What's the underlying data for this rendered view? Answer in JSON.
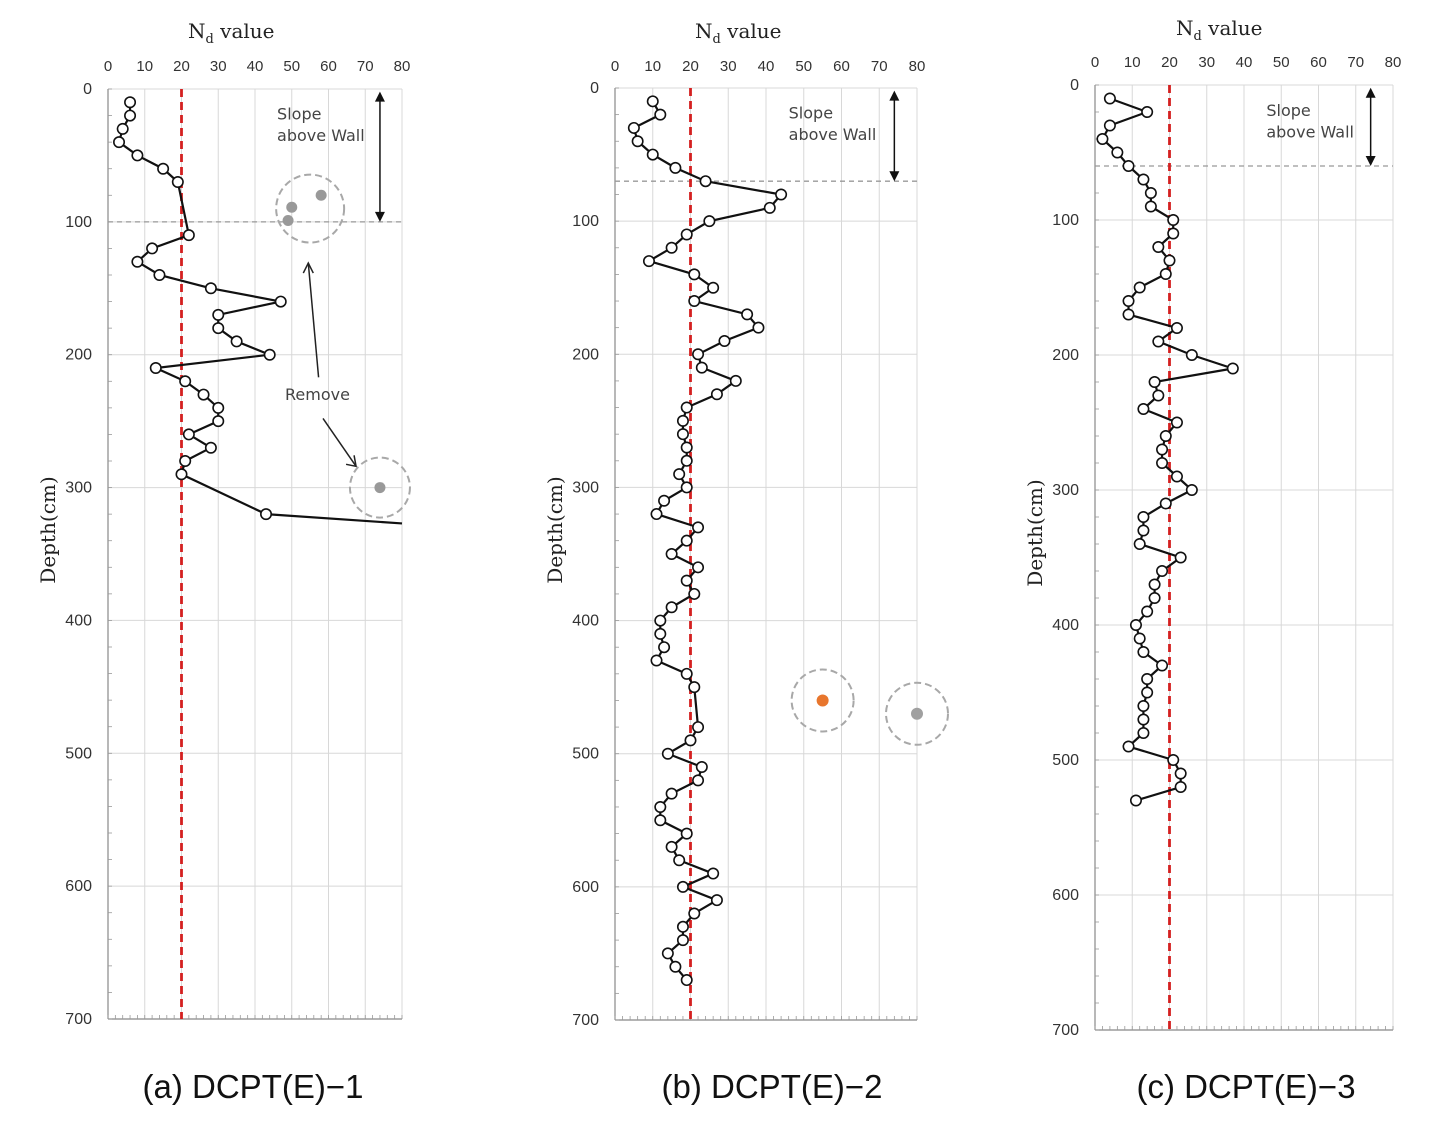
{
  "chart_data": [
    {
      "type": "line",
      "caption": "(a)  DCPT(E)−1",
      "xlabel_main": "N",
      "xlabel_sub": "d",
      "xlabel_rest": " value",
      "ylabel": "Depth(cm)",
      "xlim": [
        0,
        80
      ],
      "ylim": [
        0,
        700
      ],
      "xticks": [
        0,
        10,
        20,
        30,
        40,
        50,
        60,
        70,
        80
      ],
      "yticks": [
        0,
        100,
        200,
        300,
        400,
        500,
        600,
        700
      ],
      "reference_x": 20,
      "wall_depth": 100,
      "slope_label_1": "Slope",
      "slope_label_2": "above Wall",
      "remove_label": "Remove",
      "colors": {
        "profile": "#111111",
        "reference": "#d42020",
        "removed": "#999999"
      },
      "series": [
        {
          "x": [
            6,
            6,
            4,
            3,
            8,
            15,
            19,
            22,
            12,
            8,
            14,
            28,
            47,
            30,
            30,
            35,
            44,
            13,
            21,
            26,
            30,
            30,
            22,
            28,
            21,
            20,
            43,
            80
          ],
          "y": [
            10,
            20,
            30,
            40,
            50,
            60,
            70,
            110,
            120,
            130,
            140,
            150,
            160,
            170,
            180,
            190,
            200,
            210,
            220,
            230,
            240,
            250,
            260,
            270,
            280,
            290,
            320,
            327
          ],
          "last_point_marker": false
        }
      ],
      "removed_points": [
        {
          "x": 58,
          "y": 80
        },
        {
          "x": 50,
          "y": 89
        },
        {
          "x": 49,
          "y": 99
        },
        {
          "x": 74,
          "y": 300
        }
      ]
    },
    {
      "type": "line",
      "caption": "(b)  DCPT(E)−2",
      "xlabel_main": "N",
      "xlabel_sub": "d",
      "xlabel_rest": " value",
      "ylabel": "Depth(cm)",
      "xlim": [
        0,
        80
      ],
      "ylim": [
        0,
        700
      ],
      "xticks": [
        0,
        10,
        20,
        30,
        40,
        50,
        60,
        70,
        80
      ],
      "yticks": [
        0,
        100,
        200,
        300,
        400,
        500,
        600,
        700
      ],
      "reference_x": 20,
      "wall_depth": 70,
      "slope_label_1": "Slope",
      "slope_label_2": "above Wall",
      "colors": {
        "profile": "#111111",
        "reference": "#d42020",
        "removed_a": "#e8762d",
        "removed_b": "#a0a0a0"
      },
      "series": [
        {
          "x": [
            10,
            12,
            5,
            6,
            10,
            16,
            24,
            44,
            41,
            25,
            19,
            15,
            9,
            21,
            26,
            21,
            35,
            38,
            29,
            22,
            23,
            32,
            27,
            19,
            18,
            18,
            19,
            19,
            17,
            19,
            13,
            11,
            22,
            19,
            15,
            22,
            19,
            21,
            15,
            12,
            12,
            13,
            11,
            19,
            21,
            22,
            20,
            14,
            23,
            22,
            15,
            12,
            12,
            19,
            15,
            17,
            26,
            18,
            27,
            21,
            18,
            18,
            14,
            16,
            19
          ],
          "y": [
            10,
            20,
            30,
            40,
            50,
            60,
            70,
            80,
            90,
            100,
            110,
            120,
            130,
            140,
            150,
            160,
            170,
            180,
            190,
            200,
            210,
            220,
            230,
            240,
            250,
            260,
            270,
            280,
            290,
            300,
            310,
            320,
            330,
            340,
            350,
            360,
            370,
            380,
            390,
            400,
            410,
            420,
            430,
            440,
            450,
            480,
            490,
            500,
            510,
            520,
            530,
            540,
            550,
            560,
            570,
            580,
            590,
            600,
            610,
            620,
            630,
            640,
            650,
            660,
            670
          ],
          "last_point_marker": true
        }
      ],
      "removed_points": [
        {
          "x": 55,
          "y": 460,
          "color": "#e8762d"
        },
        {
          "x": 80,
          "y": 470,
          "color": "#a0a0a0"
        }
      ]
    },
    {
      "type": "line",
      "caption": "(c)  DCPT(E)−3",
      "xlabel_main": "N",
      "xlabel_sub": "d",
      "xlabel_rest": " value",
      "ylabel": "Depth(cm)",
      "xlim": [
        0,
        80
      ],
      "ylim": [
        0,
        700
      ],
      "xticks": [
        0,
        10,
        20,
        30,
        40,
        50,
        60,
        70,
        80
      ],
      "yticks": [
        0,
        100,
        200,
        300,
        400,
        500,
        600,
        700
      ],
      "reference_x": 20,
      "wall_depth": 60,
      "slope_label_1": "Slope",
      "slope_label_2": "above Wall",
      "colors": {
        "profile": "#111111",
        "reference": "#d42020"
      },
      "series": [
        {
          "x": [
            4,
            14,
            4,
            2,
            6,
            9,
            13,
            15,
            15,
            21,
            21,
            17,
            20,
            19,
            12,
            9,
            9,
            22,
            17,
            26,
            37,
            16,
            17,
            13,
            22,
            19,
            18,
            18,
            22,
            26,
            19,
            13,
            13,
            12,
            23,
            18,
            16,
            16,
            14,
            11,
            12,
            13,
            18,
            14,
            14,
            13,
            13,
            13,
            9,
            21,
            23,
            23,
            11
          ],
          "y": [
            10,
            20,
            30,
            40,
            50,
            60,
            70,
            80,
            90,
            100,
            110,
            120,
            130,
            140,
            150,
            160,
            170,
            180,
            190,
            200,
            210,
            220,
            230,
            240,
            250,
            260,
            270,
            280,
            290,
            300,
            310,
            320,
            330,
            340,
            350,
            360,
            370,
            380,
            390,
            400,
            410,
            420,
            430,
            440,
            450,
            460,
            470,
            480,
            490,
            500,
            510,
            520,
            530
          ],
          "last_point_marker": true
        }
      ],
      "removed_points": []
    }
  ]
}
